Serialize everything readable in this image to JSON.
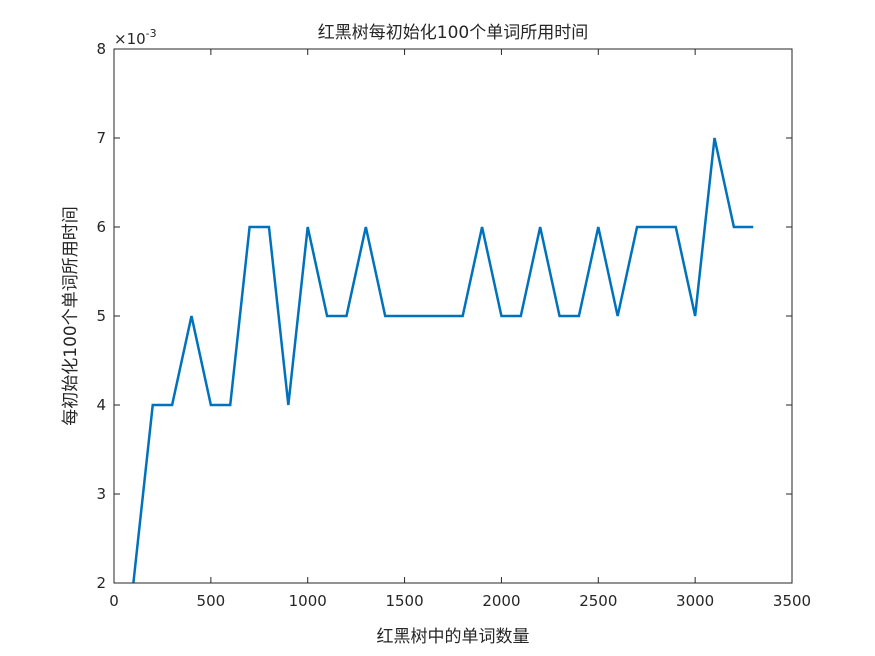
{
  "chart_data": {
    "type": "line",
    "title": "红黑树每初始化100个单词所用时间",
    "xlabel": "红黑树中的单词数量",
    "ylabel": "每初始化100个单词所用时间",
    "xlim": [
      0,
      3500
    ],
    "ylim": [
      2,
      8
    ],
    "xticks": [
      0,
      500,
      1000,
      1500,
      2000,
      2500,
      3000,
      3500
    ],
    "yticks": [
      2,
      3,
      4,
      5,
      6,
      7,
      8
    ],
    "xtick_labels": [
      "0",
      "500",
      "1000",
      "1500",
      "2000",
      "2500",
      "3000",
      "3500"
    ],
    "ytick_labels": [
      "2",
      "3",
      "4",
      "5",
      "6",
      "7",
      "8"
    ],
    "y_exponent_base": "×10",
    "y_exponent_power": "-3",
    "grid": false,
    "line_color": "#0072BD",
    "series": [
      {
        "x": [
          100,
          200,
          300,
          400,
          500,
          600,
          700,
          800,
          900,
          1000,
          1100,
          1200,
          1300,
          1400,
          1500,
          1600,
          1700,
          1800,
          1900,
          2000,
          2100,
          2200,
          2300,
          2400,
          2500,
          2600,
          2700,
          2800,
          2900,
          3000,
          3100,
          3200,
          3300
        ],
        "values": [
          2,
          4,
          4,
          5,
          4,
          4,
          6,
          6,
          4,
          6,
          5,
          5,
          6,
          5,
          5,
          5,
          5,
          5,
          6,
          5,
          5,
          6,
          5,
          5,
          6,
          5,
          6,
          6,
          6,
          5,
          7,
          6,
          6
        ]
      }
    ]
  }
}
